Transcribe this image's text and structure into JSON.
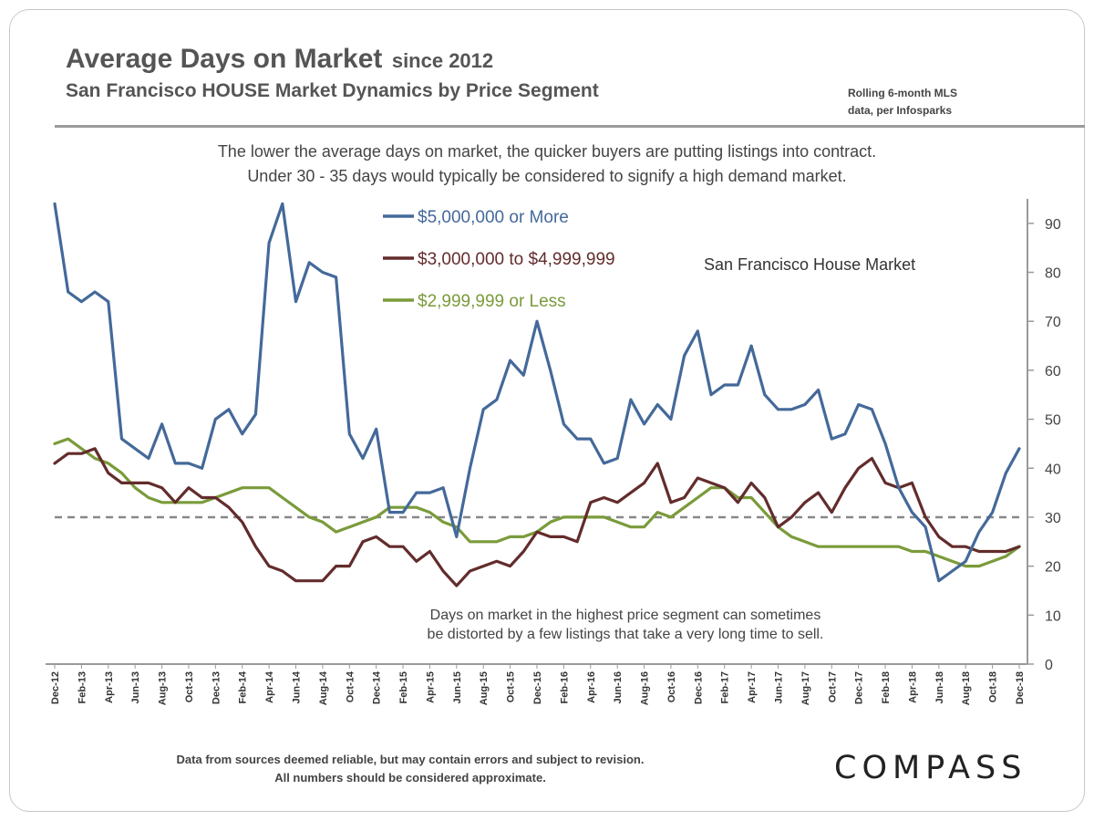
{
  "header": {
    "title": "Average Days on Market",
    "title_suffix": "since 2012",
    "subtitle": "San Francisco HOUSE Market Dynamics by Price Segment",
    "source_line1": "Rolling 6-month  MLS",
    "source_line2": "data,  per Infosparks"
  },
  "description": {
    "line1": "The lower the average days on market, the quicker buyers are putting listings into contract.",
    "line2": "Under 30 - 35 days would typically be considered to signify a high demand market."
  },
  "footer": {
    "note_line1": "Data from sources deemed reliable, but may contain errors and subject to revision.",
    "note_line2": "All numbers should be considered approximate.",
    "brand": "COMPASS"
  },
  "chart_data": {
    "type": "line",
    "chart_label": "San Francisco House Market",
    "annotation_line1": "Days on market in the highest price segment can sometimes",
    "annotation_line2": "be distorted by a few listings that take a very long time to sell.",
    "ylim": [
      0,
      95
    ],
    "y_ticks": [
      0,
      10,
      20,
      30,
      40,
      50,
      60,
      70,
      80,
      90
    ],
    "y_axis_side": "right",
    "grid": false,
    "legend_placement": "top-center",
    "reference_line": {
      "y": 30,
      "style": "dashed",
      "color": "#888888"
    },
    "x_start": "Dec-12",
    "x_end": "Dec-18",
    "x_tick_labels": [
      "Dec-12",
      "Feb-13",
      "Apr-13",
      "Jun-13",
      "Aug-13",
      "Oct-13",
      "Dec-13",
      "Feb-14",
      "Apr-14",
      "Jun-14",
      "Aug-14",
      "Oct-14",
      "Dec-14",
      "Feb-15",
      "Apr-15",
      "Jun-15",
      "Aug-15",
      "Oct-15",
      "Dec-15",
      "Feb-16",
      "Apr-16",
      "Jun-16",
      "Aug-16",
      "Oct-16",
      "Dec-16",
      "Feb-17",
      "Apr-17",
      "Jun-17",
      "Aug-17",
      "Oct-17",
      "Dec-17",
      "Feb-18",
      "Apr-18",
      "Jun-18",
      "Aug-18",
      "Oct-18",
      "Dec-18"
    ],
    "series": [
      {
        "name": "$5,000,000 or More",
        "color": "#44699a",
        "values": [
          94,
          76,
          74,
          76,
          74,
          46,
          44,
          42,
          49,
          41,
          41,
          40,
          50,
          52,
          47,
          51,
          86,
          94,
          74,
          82,
          80,
          79,
          47,
          42,
          48,
          31,
          31,
          35,
          35,
          36,
          26,
          40,
          52,
          54,
          62,
          59,
          70,
          60,
          49,
          46,
          46,
          41,
          42,
          54,
          49,
          53,
          50,
          63,
          68,
          55,
          57,
          57,
          65,
          55,
          52,
          52,
          53,
          56,
          46,
          47,
          53,
          52,
          45,
          36,
          31,
          28,
          17,
          19,
          21,
          27,
          31,
          39,
          44
        ]
      },
      {
        "name": "$3,000,000 to $4,999,999",
        "color": "#632c2c",
        "values": [
          41,
          43,
          43,
          44,
          39,
          37,
          37,
          37,
          36,
          33,
          36,
          34,
          34,
          32,
          29,
          24,
          20,
          19,
          17,
          17,
          17,
          20,
          20,
          25,
          26,
          24,
          24,
          21,
          23,
          19,
          16,
          19,
          20,
          21,
          20,
          23,
          27,
          26,
          26,
          25,
          33,
          34,
          33,
          35,
          37,
          41,
          33,
          34,
          38,
          37,
          36,
          33,
          37,
          34,
          28,
          30,
          33,
          35,
          31,
          36,
          40,
          42,
          37,
          36,
          37,
          30,
          26,
          24,
          24,
          23,
          23,
          23,
          24
        ]
      },
      {
        "name": "$2,999,999 or Less",
        "color": "#7a9b3a",
        "values": [
          45,
          46,
          44,
          42,
          41,
          39,
          36,
          34,
          33,
          33,
          33,
          33,
          34,
          35,
          36,
          36,
          36,
          34,
          32,
          30,
          29,
          27,
          28,
          29,
          30,
          32,
          32,
          32,
          31,
          29,
          28,
          25,
          25,
          25,
          26,
          26,
          27,
          29,
          30,
          30,
          30,
          30,
          29,
          28,
          28,
          31,
          30,
          32,
          34,
          36,
          36,
          34,
          34,
          31,
          28,
          26,
          25,
          24,
          24,
          24,
          24,
          24,
          24,
          24,
          23,
          23,
          22,
          21,
          20,
          20,
          21,
          22,
          24
        ]
      }
    ]
  }
}
